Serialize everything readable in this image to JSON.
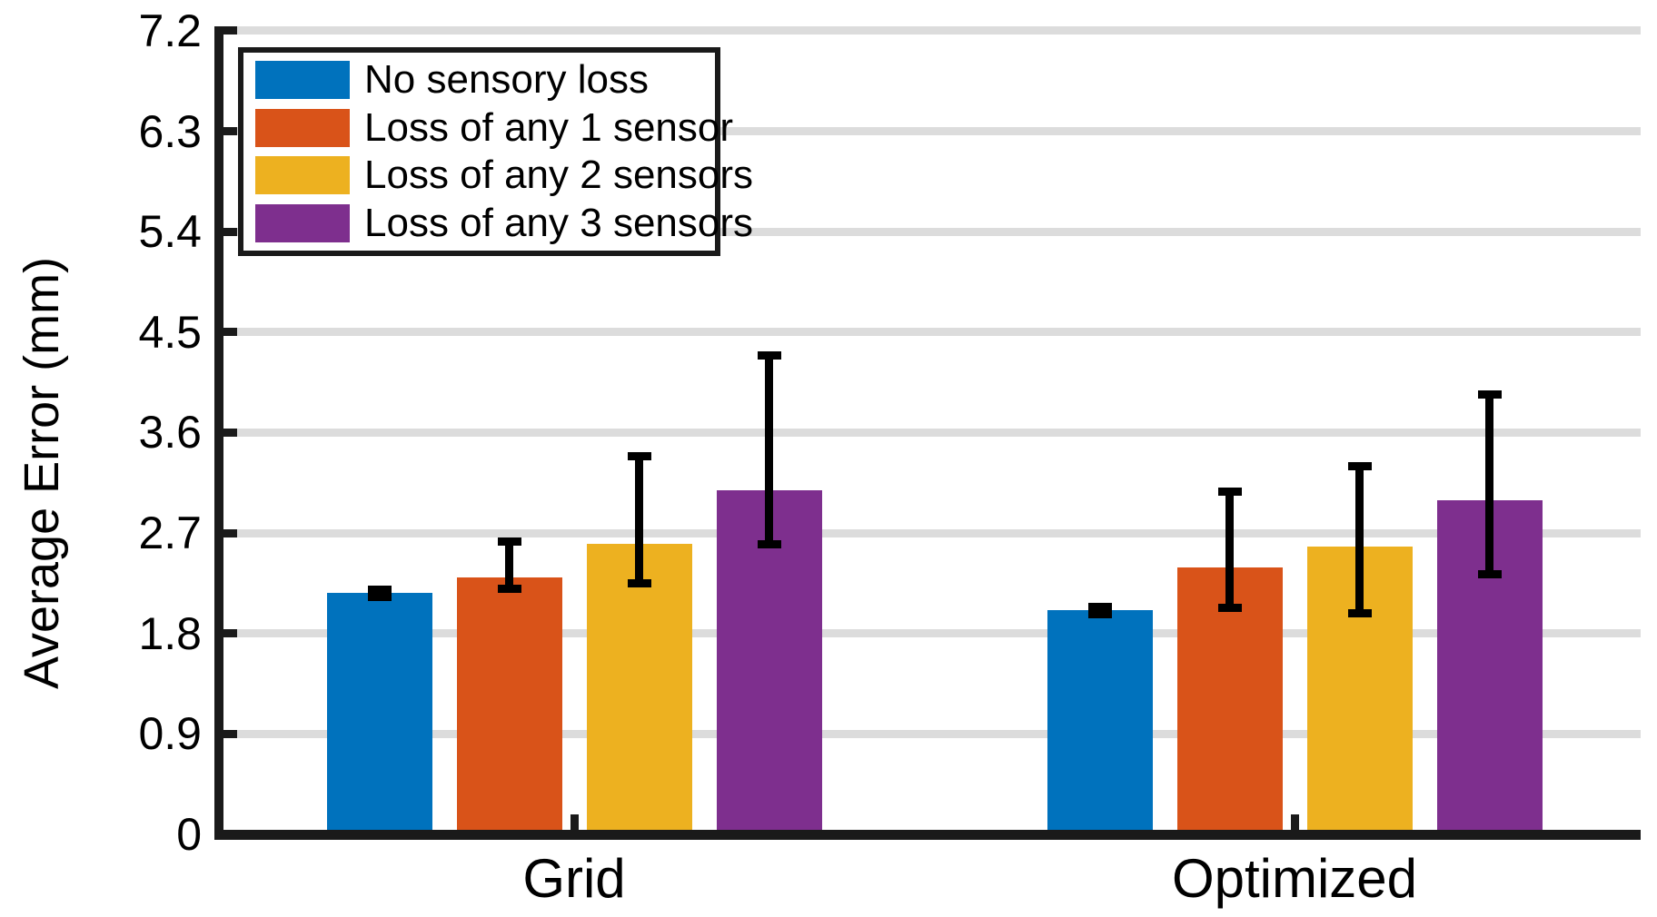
{
  "figure": {
    "background": "#ffffff"
  },
  "y_axis": {
    "label": "Average Error (mm)",
    "tick_labels": [
      "0",
      "0.9",
      "1.8",
      "2.7",
      "3.6",
      "4.5",
      "5.4",
      "6.3",
      "7.2"
    ],
    "min": 0,
    "max": 7.2
  },
  "x_axis": {
    "categories": [
      "Grid",
      "Optimized"
    ]
  },
  "legend": {
    "position": "top-left",
    "items": [
      {
        "label": "No sensory loss",
        "color": "#0072BD"
      },
      {
        "label": "Loss of any 1 sensor",
        "color": "#D95319"
      },
      {
        "label": "Loss of any 2 sensors",
        "color": "#EDB120"
      },
      {
        "label": "Loss of any 3 sensors",
        "color": "#7E2F8E"
      }
    ]
  },
  "colors": {
    "grid_line": "#dcdcdc",
    "axis_line": "#1a1a1a",
    "error_bar": "#000000"
  },
  "chart_data": {
    "type": "bar",
    "title": "",
    "xlabel": "",
    "ylabel": "Average Error (mm)",
    "categories": [
      "Grid",
      "Optimized"
    ],
    "series": [
      {
        "name": "No sensory loss",
        "color": "#0072BD",
        "values": [
          2.16,
          2.01
        ],
        "error_low": [
          2.13,
          1.97
        ],
        "error_high": [
          2.19,
          2.04
        ]
      },
      {
        "name": "Loss of any 1 sensor",
        "color": "#D95319",
        "values": [
          2.3,
          2.39
        ],
        "error_low": [
          2.2,
          2.03
        ],
        "error_high": [
          2.62,
          3.07
        ]
      },
      {
        "name": "Loss of any 2 sensors",
        "color": "#EDB120",
        "values": [
          2.6,
          2.58
        ],
        "error_low": [
          2.25,
          1.98
        ],
        "error_high": [
          3.39,
          3.3
        ]
      },
      {
        "name": "Loss of any 3 sensors",
        "color": "#7E2F8E",
        "values": [
          3.08,
          2.99
        ],
        "error_low": [
          2.6,
          2.33
        ],
        "error_high": [
          4.29,
          3.94
        ]
      }
    ],
    "ylim": [
      0,
      7.2
    ],
    "yticks": [
      0,
      0.9,
      1.8,
      2.7,
      3.6,
      4.5,
      5.4,
      6.3,
      7.2
    ],
    "grid": true,
    "error_bars": true,
    "legend_position": "top-left"
  }
}
